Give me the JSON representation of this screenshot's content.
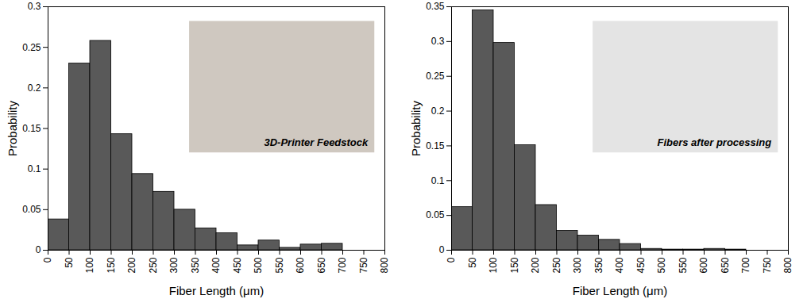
{
  "chart_data": [
    {
      "type": "histogram",
      "annotation": "3D-Printer Feedstock",
      "x_label": "Fiber Length (μm)",
      "y_label": "Probability",
      "bins": [
        0,
        50,
        100,
        150,
        200,
        250,
        300,
        350,
        400,
        450,
        500,
        550,
        600,
        650,
        700
      ],
      "values": [
        0.038,
        0.23,
        0.258,
        0.143,
        0.094,
        0.072,
        0.05,
        0.027,
        0.021,
        0.006,
        0.012,
        0.003,
        0.007,
        0.008
      ],
      "color": "#595959",
      "xlim": [
        0,
        800
      ],
      "xticks": [
        0,
        50,
        100,
        150,
        200,
        250,
        300,
        350,
        400,
        450,
        500,
        550,
        600,
        650,
        700,
        750,
        800
      ],
      "ylim": [
        0,
        0.3
      ],
      "yticks": [
        0,
        0.05,
        0.1,
        0.15,
        0.2,
        0.25,
        0.3
      ],
      "grid": false
    },
    {
      "type": "histogram",
      "annotation": "Fibers after processing",
      "x_label": "Fiber Length (μm)",
      "y_label": "Probability",
      "bins": [
        0,
        50,
        100,
        150,
        200,
        250,
        300,
        350,
        400,
        450,
        500,
        550,
        600,
        650,
        700
      ],
      "values": [
        0.062,
        0.345,
        0.298,
        0.151,
        0.065,
        0.028,
        0.021,
        0.015,
        0.009,
        0.002,
        0.001,
        0.001,
        0.002,
        0.001
      ],
      "color": "#595959",
      "xlim": [
        0,
        800
      ],
      "xticks": [
        0,
        50,
        100,
        150,
        200,
        250,
        300,
        350,
        400,
        450,
        500,
        550,
        600,
        650,
        700,
        750,
        800
      ],
      "ylim": [
        0,
        0.35
      ],
      "yticks": [
        0,
        0.05,
        0.1,
        0.15,
        0.2,
        0.25,
        0.3,
        0.35
      ],
      "grid": false
    }
  ]
}
